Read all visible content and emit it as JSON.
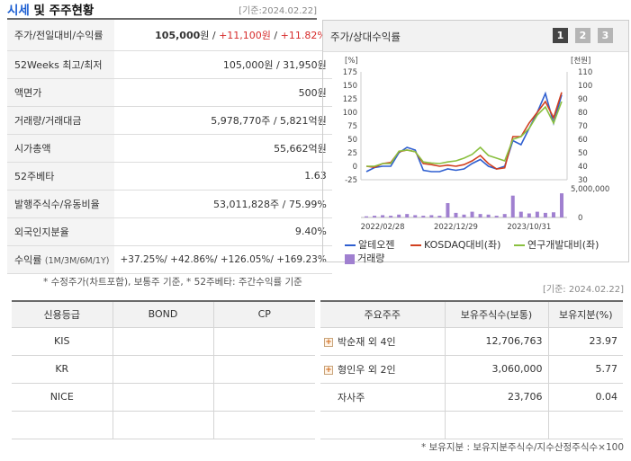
{
  "header": {
    "title_main": "시세",
    "title_rest": " 및 주주현황",
    "basis_date": "[기준:2024.02.22]"
  },
  "quote": {
    "rows": [
      {
        "label": "주가/전일대비/수익률",
        "price": "105,000",
        "unit": "원",
        "sep": " / ",
        "change": "+11,100원",
        "sep2": " / ",
        "rate": "+11.82%"
      },
      {
        "label": "52Weeks 최고/최저",
        "value": "105,000원 / 31,950원"
      },
      {
        "label": "액면가",
        "value": "500원"
      },
      {
        "label": "거래량/거래대금",
        "value": "5,978,770주 / 5,821억원"
      },
      {
        "label": "시가총액",
        "value": "55,662억원"
      },
      {
        "label": "52주베타",
        "value": "1.63"
      },
      {
        "label": "발행주식수/유동비율",
        "value": "53,011,828주 / 75.99%"
      },
      {
        "label": "외국인지분율",
        "value": "9.40%"
      }
    ],
    "returns": {
      "label": "수익률",
      "period": "(1M/3M/6M/1Y)",
      "values": "+37.25%/ +42.86%/ +126.05%/ +169.23%"
    }
  },
  "quote_note": "* 수정주가(차트포함), 보통주 기준, * 52주베타: 주간수익률 기준",
  "chart_panel": {
    "title": "주가/상대수익률",
    "tabs": [
      "1",
      "2",
      "3"
    ],
    "active_tab": "1",
    "left_unit": "[%]",
    "right_unit": "[천원]",
    "volume_max_label": "5,000,000",
    "volume_zero_label": "0",
    "legend": {
      "s1": "알테오젠",
      "s2": "KOSDAQ대비(좌)",
      "s3": "연구개발대비(좌)",
      "vol": "거래량"
    },
    "colors": {
      "s1": "#2f5fd0",
      "s2": "#d14020",
      "s3": "#8ac040",
      "vol": "#a080d0"
    }
  },
  "chart_data": {
    "type": "line",
    "x_ticks": [
      "2022/02/28",
      "2022/12/29",
      "2023/10/31"
    ],
    "left_axis": {
      "ticks": [
        175,
        150,
        125,
        100,
        75,
        50,
        25,
        0,
        -25
      ],
      "ylim": [
        -25,
        175
      ]
    },
    "right_axis": {
      "ticks": [
        110,
        100,
        90,
        80,
        70,
        60,
        50,
        40,
        30
      ],
      "ylim": [
        30,
        110
      ]
    },
    "series": [
      {
        "name": "알테오젠",
        "axis": "right",
        "values": [
          36,
          39,
          40,
          40,
          50,
          54,
          52,
          37,
          36,
          36,
          38,
          37,
          38,
          42,
          45,
          40,
          38,
          40,
          59,
          56,
          68,
          80,
          94,
          72,
          93
        ]
      },
      {
        "name": "KOSDAQ대비(좌)",
        "axis": "left",
        "values": [
          0,
          -2,
          5,
          7,
          27,
          30,
          27,
          5,
          3,
          0,
          2,
          0,
          3,
          10,
          20,
          5,
          -5,
          -3,
          55,
          55,
          80,
          100,
          120,
          90,
          137
        ]
      },
      {
        "name": "연구개발대비(좌)",
        "axis": "left",
        "values": [
          0,
          0,
          5,
          5,
          28,
          30,
          27,
          8,
          6,
          5,
          8,
          10,
          15,
          22,
          35,
          20,
          15,
          10,
          50,
          55,
          70,
          95,
          110,
          80,
          120
        ]
      }
    ],
    "volume": [
      0.2,
      0.3,
      0.4,
      0.3,
      0.5,
      0.6,
      0.4,
      0.3,
      0.4,
      0.3,
      2.5,
      0.8,
      0.5,
      1.0,
      0.6,
      0.5,
      0.3,
      0.6,
      3.8,
      1.0,
      0.7,
      1.0,
      0.8,
      0.9,
      4.2
    ]
  },
  "basis_date_2": "[기준: 2024.02.22]",
  "credit": {
    "headers": [
      "신용등급",
      "BOND",
      "CP"
    ],
    "rows": [
      {
        "agency": "KIS",
        "bond": "",
        "cp": ""
      },
      {
        "agency": "KR",
        "bond": "",
        "cp": ""
      },
      {
        "agency": "NICE",
        "bond": "",
        "cp": ""
      },
      {
        "agency": "",
        "bond": "",
        "cp": ""
      }
    ]
  },
  "holders": {
    "headers": [
      "주요주주",
      "보유주식수(보통)",
      "보유지분(%)"
    ],
    "rows": [
      {
        "name": "박순재 외 4인",
        "shares": "12,706,763",
        "pct": "23.97",
        "expandable": true
      },
      {
        "name": "형인우 외 2인",
        "shares": "3,060,000",
        "pct": "5.77",
        "expandable": true
      },
      {
        "name": "자사주",
        "shares": "23,706",
        "pct": "0.04",
        "expandable": false
      },
      {
        "name": "",
        "shares": "",
        "pct": "",
        "expandable": false
      }
    ]
  },
  "holders_note": "* 보유지분 : 보유지분주식수/지수산정주식수×100"
}
